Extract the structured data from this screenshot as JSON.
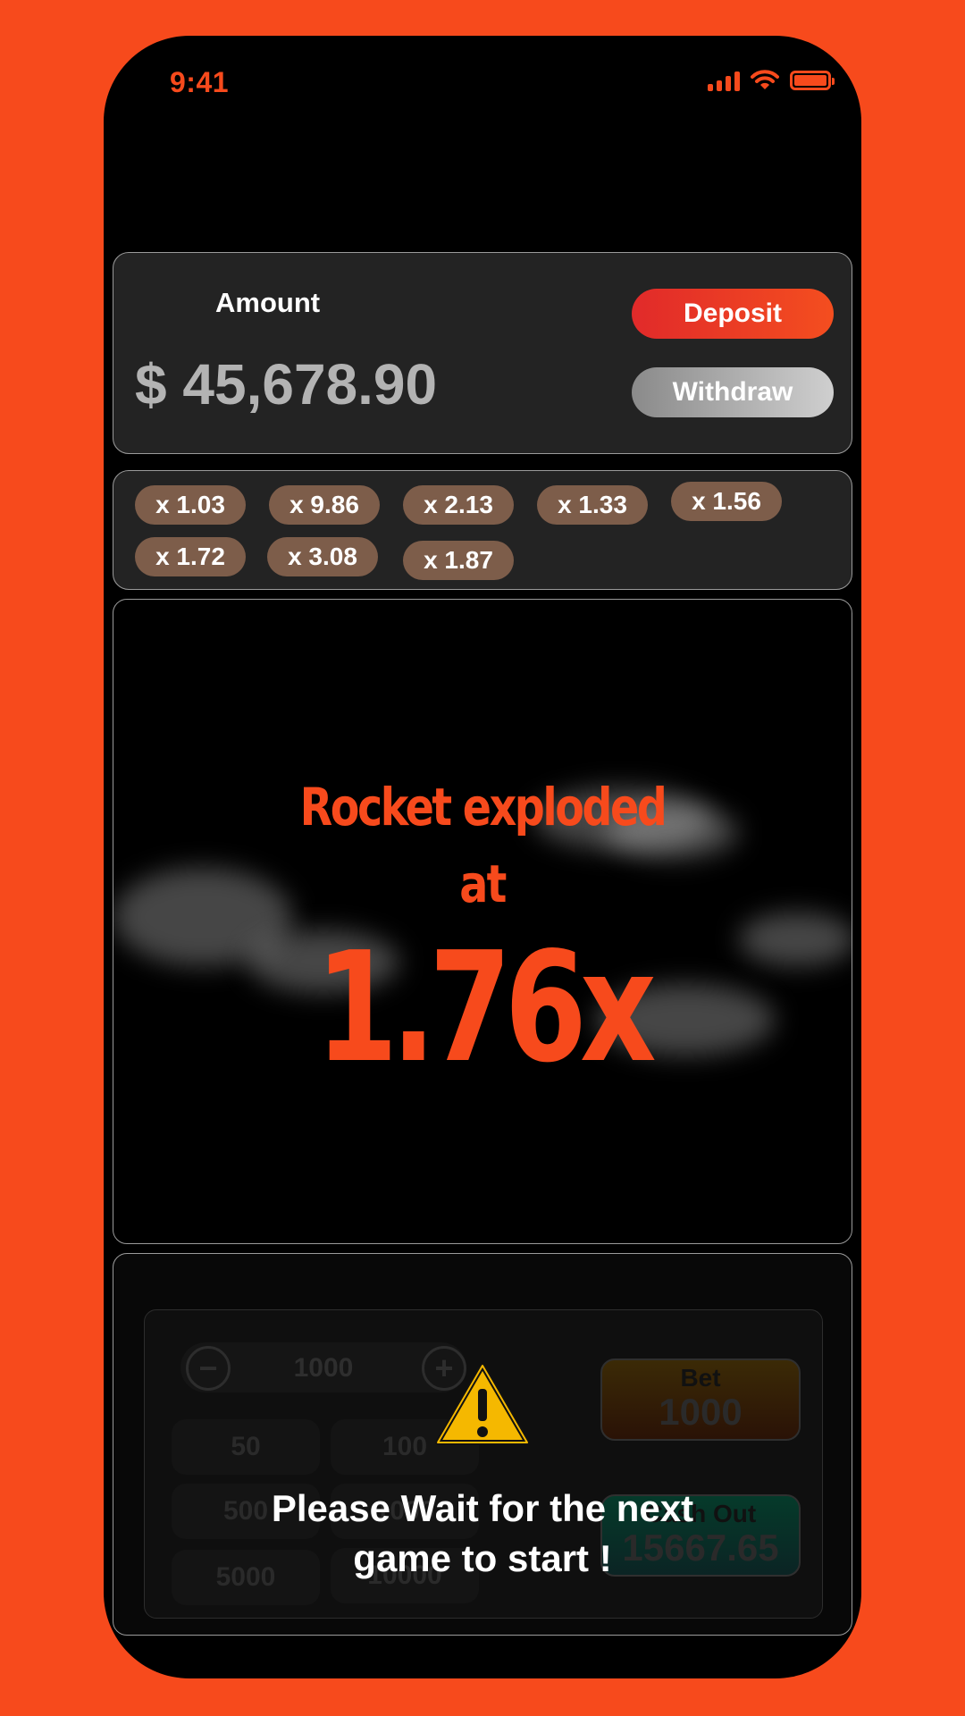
{
  "status": {
    "time": "9:41"
  },
  "wallet": {
    "amount_label": "Amount",
    "amount_value": "$ 45,678.90",
    "deposit_label": "Deposit",
    "withdraw_label": "Withdraw"
  },
  "history": [
    "x 1.03",
    "x 9.86",
    "x 2.13",
    "x 1.33",
    "x 1.56",
    "x 1.72",
    "x 3.08",
    "x 1.87"
  ],
  "game": {
    "line1": "Rocket exploded",
    "line2": "at",
    "multiplier": "1.76x"
  },
  "bet": {
    "stepper_value": "1000",
    "presets": [
      "50",
      "100",
      "500",
      "1000",
      "5000",
      "10000"
    ],
    "bet_label": "Bet",
    "bet_value": "1000",
    "cashout_label": "Cash Out",
    "cashout_value": "15667.65"
  },
  "overlay": {
    "line1": "Please Wait for the next",
    "line2": "game to start !"
  },
  "colors": {
    "accent": "#f74a1c",
    "chip": "#7d5d4a",
    "warning": "#f5b800"
  }
}
